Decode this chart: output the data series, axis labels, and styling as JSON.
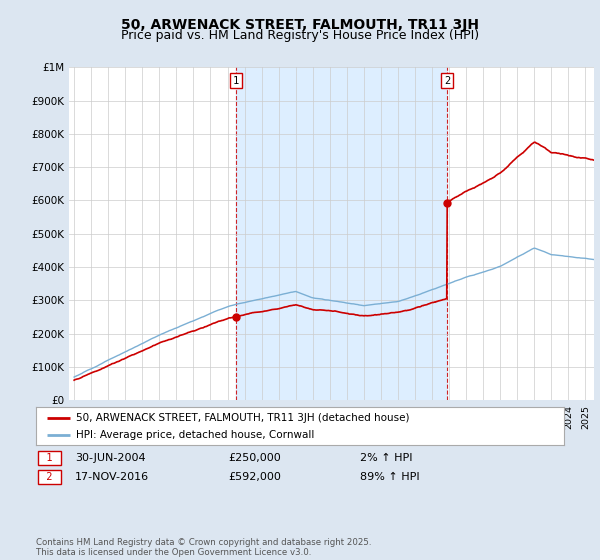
{
  "title": "50, ARWENACK STREET, FALMOUTH, TR11 3JH",
  "subtitle": "Price paid vs. HM Land Registry's House Price Index (HPI)",
  "ylim": [
    0,
    1000000
  ],
  "yticks": [
    0,
    100000,
    200000,
    300000,
    400000,
    500000,
    600000,
    700000,
    800000,
    900000,
    1000000
  ],
  "ytick_labels": [
    "£0",
    "£100K",
    "£200K",
    "£300K",
    "£400K",
    "£500K",
    "£600K",
    "£700K",
    "£800K",
    "£900K",
    "£1M"
  ],
  "x_start_year": 1995,
  "x_end_year": 2025,
  "sale1_date": 2004.5,
  "sale1_price": 250000,
  "sale1_label": "1",
  "sale2_date": 2016.88,
  "sale2_price": 592000,
  "sale2_label": "2",
  "red_line_color": "#cc0000",
  "blue_line_color": "#7bafd4",
  "shade_color": "#ddeeff",
  "grid_color": "#cccccc",
  "bg_color": "#dce6f1",
  "plot_bg_color": "#ffffff",
  "annotation1_date": "30-JUN-2004",
  "annotation1_price": "£250,000",
  "annotation1_hpi": "2% ↑ HPI",
  "annotation2_date": "17-NOV-2016",
  "annotation2_price": "£592,000",
  "annotation2_hpi": "89% ↑ HPI",
  "legend_line1": "50, ARWENACK STREET, FALMOUTH, TR11 3JH (detached house)",
  "legend_line2": "HPI: Average price, detached house, Cornwall",
  "footer": "Contains HM Land Registry data © Crown copyright and database right 2025.\nThis data is licensed under the Open Government Licence v3.0.",
  "title_fontsize": 10,
  "subtitle_fontsize": 9
}
